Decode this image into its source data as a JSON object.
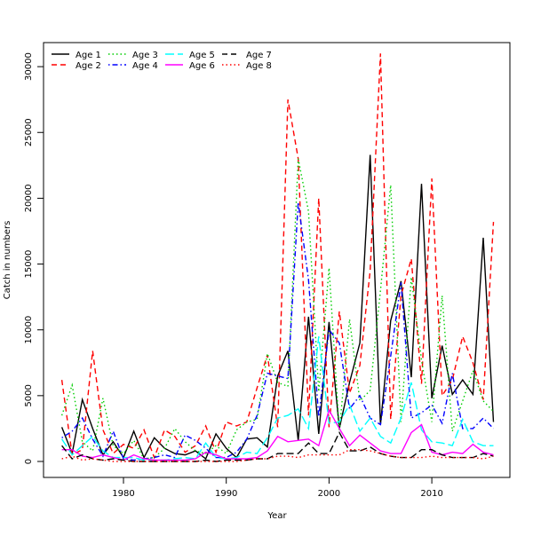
{
  "chart_data": {
    "type": "line",
    "title": "",
    "xlabel": "Year",
    "ylabel": "Catch in numbers",
    "xlim": [
      1974,
      2016
    ],
    "ylim": [
      0,
      31000
    ],
    "x_ticks": [
      1980,
      1990,
      2000,
      2010
    ],
    "y_ticks": [
      0,
      5000,
      10000,
      15000,
      20000,
      25000,
      30000
    ],
    "legend_position": "top-left",
    "x": [
      1974,
      1975,
      1976,
      1977,
      1978,
      1979,
      1980,
      1981,
      1982,
      1983,
      1984,
      1985,
      1986,
      1987,
      1988,
      1989,
      1990,
      1991,
      1992,
      1993,
      1994,
      1995,
      1996,
      1997,
      1998,
      1999,
      2000,
      2001,
      2002,
      2003,
      2004,
      2005,
      2006,
      2007,
      2008,
      2009,
      2010,
      2011,
      2012,
      2013,
      2014,
      2015,
      2016
    ],
    "series": [
      {
        "name": "Age 1",
        "color": "#000000",
        "dash": "solid",
        "values": [
          2600,
          600,
          4700,
          2500,
          500,
          1500,
          300,
          2300,
          300,
          1800,
          1000,
          600,
          500,
          800,
          200,
          2100,
          1000,
          300,
          1700,
          1800,
          1100,
          6500,
          8400,
          1600,
          11000,
          2100,
          10600,
          2500,
          6000,
          9000,
          23300,
          2800,
          10700,
          13700,
          6400,
          21100,
          4800,
          8800,
          5100,
          6200,
          5100,
          17000,
          3000
        ]
      },
      {
        "name": "Age 2",
        "color": "#ff0000",
        "dash": "dashed",
        "values": [
          6200,
          500,
          900,
          8400,
          2400,
          600,
          1300,
          1000,
          2400,
          300,
          2400,
          1900,
          700,
          1200,
          2700,
          700,
          3000,
          2700,
          3000,
          5600,
          8100,
          2600,
          27500,
          23000,
          3500,
          20000,
          2600,
          11400,
          5200,
          7300,
          14500,
          31000,
          3200,
          12600,
          15400,
          5900,
          21500,
          5000,
          6200,
          9500,
          7500,
          4700,
          18200
        ]
      },
      {
        "name": "Age 3",
        "color": "#00cd00",
        "dash": "dotted",
        "values": [
          3500,
          5800,
          1500,
          800,
          4800,
          1200,
          600,
          1600,
          200,
          300,
          1000,
          2500,
          1500,
          800,
          600,
          1200,
          600,
          2400,
          3000,
          3200,
          8200,
          6000,
          5700,
          23000,
          19000,
          5300,
          14700,
          2300,
          10800,
          4600,
          5400,
          13000,
          21000,
          3000,
          14000,
          7700,
          3000,
          12600,
          2300,
          4600,
          6900,
          4600,
          3800
        ]
      },
      {
        "name": "Age 4",
        "color": "#0000ff",
        "dash": "dotdash",
        "values": [
          1800,
          2300,
          3300,
          1700,
          400,
          2300,
          200,
          100,
          200,
          300,
          500,
          300,
          2000,
          1600,
          1000,
          300,
          300,
          700,
          1700,
          3500,
          6700,
          6500,
          6300,
          19700,
          13800,
          3400,
          10000,
          9000,
          4000,
          5000,
          3300,
          2800,
          8000,
          13600,
          3300,
          3700,
          4300,
          2900,
          6700,
          2500,
          2500,
          3300,
          2500
        ]
      },
      {
        "name": "Age 5",
        "color": "#00ffff",
        "dash": "longdash",
        "values": [
          1700,
          500,
          1200,
          1900,
          800,
          300,
          300,
          300,
          100,
          100,
          100,
          200,
          300,
          200,
          1400,
          300,
          200,
          300,
          700,
          600,
          1800,
          3300,
          3500,
          4000,
          2500,
          9500,
          2900,
          3000,
          4300,
          2300,
          3300,
          1900,
          1400,
          3300,
          6000,
          2400,
          1500,
          1400,
          1200,
          3200,
          1500,
          1200,
          1200
        ]
      },
      {
        "name": "Age 6",
        "color": "#ff00ff",
        "dash": "solid",
        "values": [
          900,
          900,
          400,
          300,
          500,
          300,
          100,
          500,
          200,
          100,
          100,
          100,
          100,
          200,
          700,
          500,
          200,
          200,
          200,
          300,
          800,
          1900,
          1500,
          1600,
          1700,
          1200,
          3900,
          2500,
          1200,
          2000,
          1400,
          800,
          600,
          600,
          2200,
          2800,
          700,
          500,
          700,
          600,
          1300,
          700,
          500
        ]
      },
      {
        "name": "Age 7",
        "color": "#000000",
        "dash": "dashed",
        "values": [
          1200,
          200,
          500,
          200,
          100,
          200,
          100,
          0,
          0,
          0,
          0,
          0,
          0,
          0,
          100,
          0,
          100,
          100,
          100,
          200,
          200,
          600,
          600,
          600,
          1400,
          600,
          600,
          2200,
          800,
          800,
          1100,
          600,
          400,
          300,
          300,
          900,
          900,
          500,
          300,
          300,
          300,
          600,
          400
        ]
      },
      {
        "name": "Age 8",
        "color": "#ff0000",
        "dash": "dotted",
        "values": [
          200,
          400,
          100,
          200,
          100,
          0,
          0,
          0,
          0,
          0,
          0,
          0,
          0,
          0,
          0,
          0,
          0,
          0,
          100,
          200,
          200,
          400,
          400,
          300,
          500,
          500,
          500,
          500,
          900,
          900,
          800,
          600,
          400,
          300,
          300,
          300,
          400,
          300,
          300,
          300,
          300,
          200,
          400
        ]
      }
    ]
  }
}
